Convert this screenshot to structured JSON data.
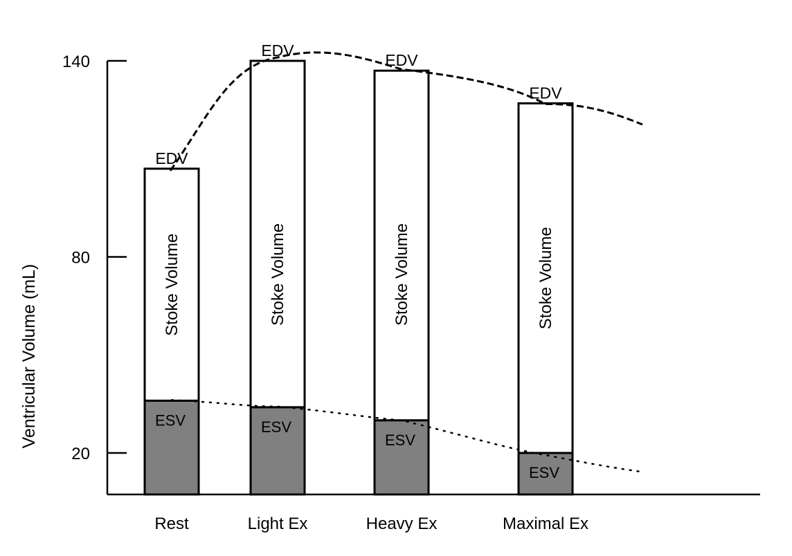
{
  "chart_data": {
    "type": "bar",
    "ylabel": "Ventricular Volume (mL)",
    "y_ticks": [
      20,
      80,
      140
    ],
    "ylim": [
      7,
      143
    ],
    "categories": [
      "Rest",
      "Light Ex",
      "Heavy Ex",
      "Maximal Ex"
    ],
    "series": [
      {
        "name": "ESV",
        "values": [
          36,
          34,
          30,
          20
        ],
        "color": "#808080"
      },
      {
        "name": "EDV",
        "values": [
          107,
          140,
          137,
          127
        ],
        "color": "#ffffff"
      }
    ],
    "bar_labels": {
      "top": "EDV",
      "middle": "Stoke Volume",
      "bottom": "ESV"
    },
    "edv_trend_line": {
      "style": "dashed"
    },
    "esv_trend_line": {
      "style": "dotted"
    },
    "grid": false,
    "legend": "none"
  }
}
